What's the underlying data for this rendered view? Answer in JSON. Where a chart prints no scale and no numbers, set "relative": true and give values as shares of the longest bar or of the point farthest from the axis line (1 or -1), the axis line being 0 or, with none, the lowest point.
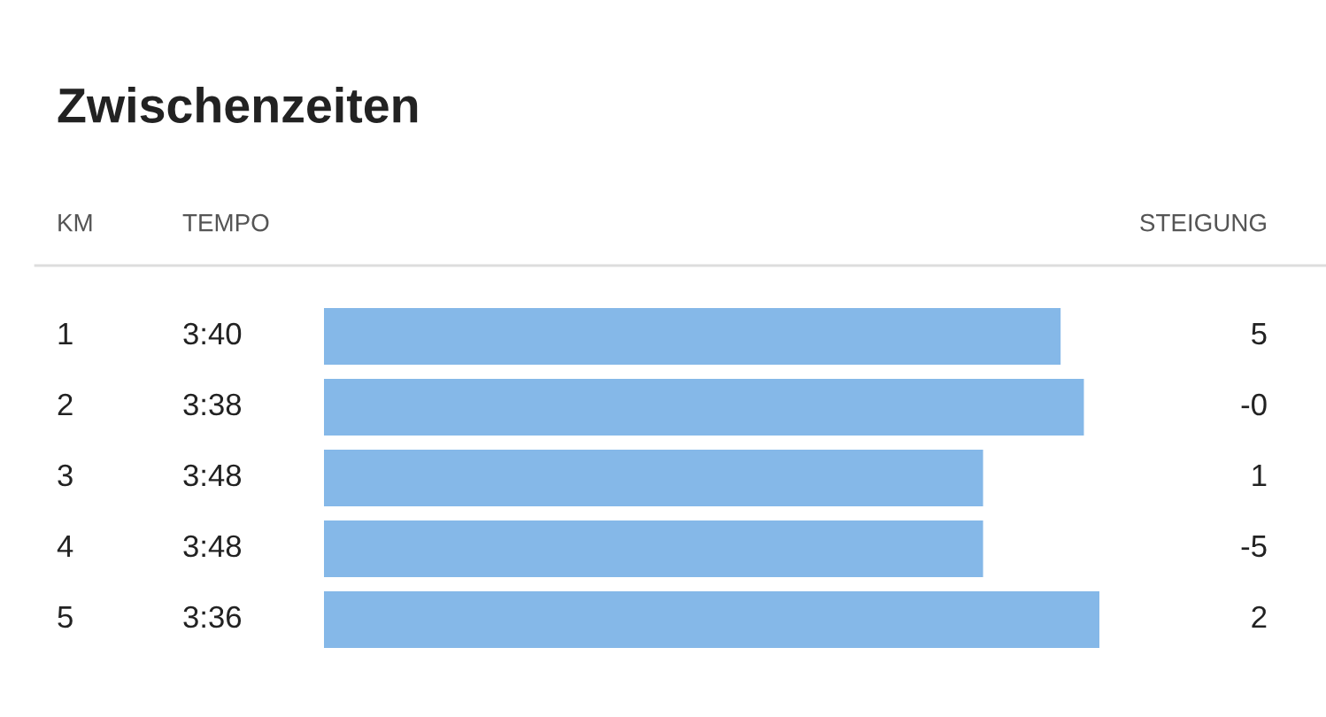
{
  "chart_data": {
    "type": "bar",
    "orientation": "horizontal",
    "relative": true,
    "title": "Zwischenzeiten",
    "ylabel": "KM",
    "categories": [
      "1",
      "2",
      "3",
      "4",
      "5"
    ],
    "values": [
      0.95,
      0.98,
      0.85,
      0.85,
      1
    ],
    "color": "#85b8e8",
    "annotations": [
      "TEMPO",
      "STEIGUNG",
      "3:40",
      "3:38",
      "3:48",
      "3:48",
      "3:36",
      "5",
      "-0",
      "1",
      "-5",
      "2"
    ]
  }
}
